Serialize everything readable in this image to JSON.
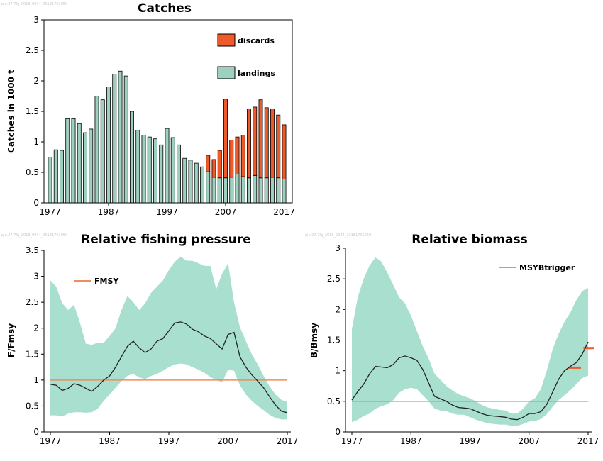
{
  "colors": {
    "discards": "#ee5a29",
    "landings": "#9fcfbe",
    "band": "#a8dfcf",
    "reference_line": "#f08c5e",
    "line": "#222222"
  },
  "watermarks": {
    "catches": "pie.27.7fg_2018_9034_20181701050",
    "fishing": "pie.27.7fg_2018_9034_20181701050",
    "biomass": "pie.27.7fg_2018_9034_20181701050"
  },
  "chart_data": [
    {
      "type": "bar",
      "title": "Catches",
      "ylabel": "Catches in 1000 t",
      "xlabel": "",
      "ylim": [
        0,
        3
      ],
      "yticks": [
        "0",
        "0.5",
        "1",
        "1.5",
        "2",
        "2.5",
        "3"
      ],
      "xticks": [
        "1977",
        "1987",
        "1997",
        "2007",
        "2017"
      ],
      "stacked": true,
      "legend_position": "top-right",
      "categories": [
        1977,
        1978,
        1979,
        1980,
        1981,
        1982,
        1983,
        1984,
        1985,
        1986,
        1987,
        1988,
        1989,
        1990,
        1991,
        1992,
        1993,
        1994,
        1995,
        1996,
        1997,
        1998,
        1999,
        2000,
        2001,
        2002,
        2003,
        2004,
        2005,
        2006,
        2007,
        2008,
        2009,
        2010,
        2011,
        2012,
        2013,
        2014,
        2015,
        2016,
        2017
      ],
      "series": [
        {
          "name": "landings",
          "values": [
            0.75,
            0.87,
            0.86,
            1.38,
            1.38,
            1.3,
            1.15,
            1.21,
            1.75,
            1.69,
            1.9,
            2.11,
            2.16,
            2.08,
            1.5,
            1.19,
            1.11,
            1.08,
            1.05,
            0.95,
            1.22,
            1.07,
            0.95,
            0.73,
            0.7,
            0.65,
            0.59,
            0.51,
            0.42,
            0.41,
            0.41,
            0.42,
            0.47,
            0.43,
            0.41,
            0.45,
            0.41,
            0.41,
            0.42,
            0.41,
            0.39
          ]
        },
        {
          "name": "discards",
          "values": [
            0,
            0,
            0,
            0,
            0,
            0,
            0,
            0,
            0,
            0,
            0,
            0,
            0,
            0,
            0,
            0,
            0,
            0,
            0,
            0,
            0,
            0,
            0,
            0,
            0,
            0,
            0,
            0.27,
            0.29,
            0.45,
            1.29,
            0.61,
            0.61,
            0.68,
            1.13,
            1.12,
            1.28,
            1.15,
            1.12,
            1.03,
            0.89
          ]
        }
      ]
    },
    {
      "type": "area",
      "title": "Relative fishing pressure",
      "ylabel": "F/Fmsy",
      "xlabel": "",
      "ylim": [
        0,
        3.5
      ],
      "yticks": [
        "0",
        "0.5",
        "1",
        "1.5",
        "2",
        "2.5",
        "3",
        "3.5"
      ],
      "xticks": [
        "1977",
        "1987",
        "1997",
        "2007",
        "2017"
      ],
      "legend_position": "top-left",
      "x": [
        1977,
        1978,
        1979,
        1980,
        1981,
        1982,
        1983,
        1984,
        1985,
        1986,
        1987,
        1988,
        1989,
        1990,
        1991,
        1992,
        1993,
        1994,
        1995,
        1996,
        1997,
        1998,
        1999,
        2000,
        2001,
        2002,
        2003,
        2004,
        2005,
        2006,
        2007,
        2008,
        2009,
        2010,
        2011,
        2012,
        2013,
        2014,
        2015,
        2016,
        2017
      ],
      "series": [
        {
          "values": [
            0.92,
            0.9,
            0.8,
            0.84,
            0.93,
            0.9,
            0.84,
            0.78,
            0.88,
            1.0,
            1.08,
            1.25,
            1.45,
            1.65,
            1.75,
            1.62,
            1.53,
            1.6,
            1.75,
            1.8,
            1.95,
            2.1,
            2.12,
            2.08,
            1.98,
            1.93,
            1.85,
            1.8,
            1.7,
            1.6,
            1.88,
            1.92,
            1.45,
            1.25,
            1.1,
            0.98,
            0.85,
            0.68,
            0.52,
            0.4,
            0.37
          ]
        }
      ],
      "band": {
        "lower": [
          0.32,
          0.32,
          0.3,
          0.35,
          0.38,
          0.38,
          0.37,
          0.38,
          0.45,
          0.6,
          0.72,
          0.85,
          0.98,
          1.08,
          1.12,
          1.05,
          1.02,
          1.08,
          1.12,
          1.18,
          1.25,
          1.3,
          1.32,
          1.3,
          1.25,
          1.2,
          1.14,
          1.06,
          1.0,
          0.96,
          1.2,
          1.18,
          0.9,
          0.72,
          0.6,
          0.5,
          0.42,
          0.33,
          0.27,
          0.24,
          0.24
        ],
        "upper": [
          2.92,
          2.8,
          2.48,
          2.35,
          2.45,
          2.1,
          1.7,
          1.68,
          1.72,
          1.72,
          1.85,
          2.0,
          2.35,
          2.62,
          2.5,
          2.35,
          2.48,
          2.68,
          2.8,
          2.92,
          3.12,
          3.28,
          3.38,
          3.3,
          3.3,
          3.25,
          3.2,
          3.2,
          2.75,
          3.05,
          3.25,
          2.5,
          2.02,
          1.75,
          1.5,
          1.3,
          1.08,
          0.88,
          0.72,
          0.62,
          0.58
        ]
      },
      "reference": {
        "name": "FMSY",
        "value": 1.0
      }
    },
    {
      "type": "area",
      "title": "Relative biomass",
      "ylabel": "B/Bmsy",
      "xlabel": "",
      "ylim": [
        0,
        3
      ],
      "yticks": [
        "0",
        "0.5",
        "1",
        "1.5",
        "2",
        "2.5",
        "3"
      ],
      "xticks": [
        "1977",
        "1987",
        "1997",
        "2007",
        "2017"
      ],
      "legend_position": "top-right",
      "x": [
        1977,
        1978,
        1979,
        1980,
        1981,
        1982,
        1983,
        1984,
        1985,
        1986,
        1987,
        1988,
        1989,
        1990,
        1991,
        1992,
        1993,
        1994,
        1995,
        1996,
        1997,
        1998,
        1999,
        2000,
        2001,
        2002,
        2003,
        2004,
        2005,
        2006,
        2007,
        2008,
        2009,
        2010,
        2011,
        2012,
        2013,
        2014,
        2015,
        2016,
        2017
      ],
      "series": [
        {
          "values": [
            0.52,
            0.66,
            0.78,
            0.95,
            1.07,
            1.06,
            1.05,
            1.1,
            1.21,
            1.24,
            1.21,
            1.17,
            1.02,
            0.8,
            0.58,
            0.54,
            0.5,
            0.44,
            0.4,
            0.39,
            0.38,
            0.34,
            0.3,
            0.27,
            0.26,
            0.25,
            0.24,
            0.21,
            0.2,
            0.24,
            0.3,
            0.3,
            0.33,
            0.45,
            0.65,
            0.86,
            1.0,
            1.07,
            1.13,
            1.27,
            1.47
          ]
        }
      ],
      "band": {
        "lower": [
          0.16,
          0.2,
          0.26,
          0.3,
          0.38,
          0.42,
          0.45,
          0.52,
          0.64,
          0.7,
          0.72,
          0.7,
          0.6,
          0.5,
          0.38,
          0.35,
          0.34,
          0.3,
          0.28,
          0.28,
          0.24,
          0.2,
          0.17,
          0.14,
          0.13,
          0.12,
          0.12,
          0.1,
          0.1,
          0.13,
          0.17,
          0.18,
          0.21,
          0.29,
          0.41,
          0.52,
          0.6,
          0.68,
          0.78,
          0.88,
          0.92
        ],
        "upper": [
          1.68,
          2.2,
          2.5,
          2.72,
          2.85,
          2.78,
          2.6,
          2.4,
          2.2,
          2.1,
          1.9,
          1.65,
          1.4,
          1.2,
          0.95,
          0.85,
          0.75,
          0.68,
          0.62,
          0.58,
          0.55,
          0.5,
          0.44,
          0.4,
          0.38,
          0.36,
          0.35,
          0.3,
          0.3,
          0.38,
          0.5,
          0.55,
          0.7,
          1.0,
          1.35,
          1.6,
          1.8,
          1.95,
          2.15,
          2.3,
          2.35
        ]
      },
      "reference": {
        "name": "MSYBtrigger",
        "value": 0.5
      },
      "markers": [
        {
          "x0": 2013.6,
          "x1": 2015.8,
          "y": 1.05
        },
        {
          "x0": 2016.2,
          "x1": 2018.0,
          "y": 1.37
        }
      ]
    }
  ]
}
